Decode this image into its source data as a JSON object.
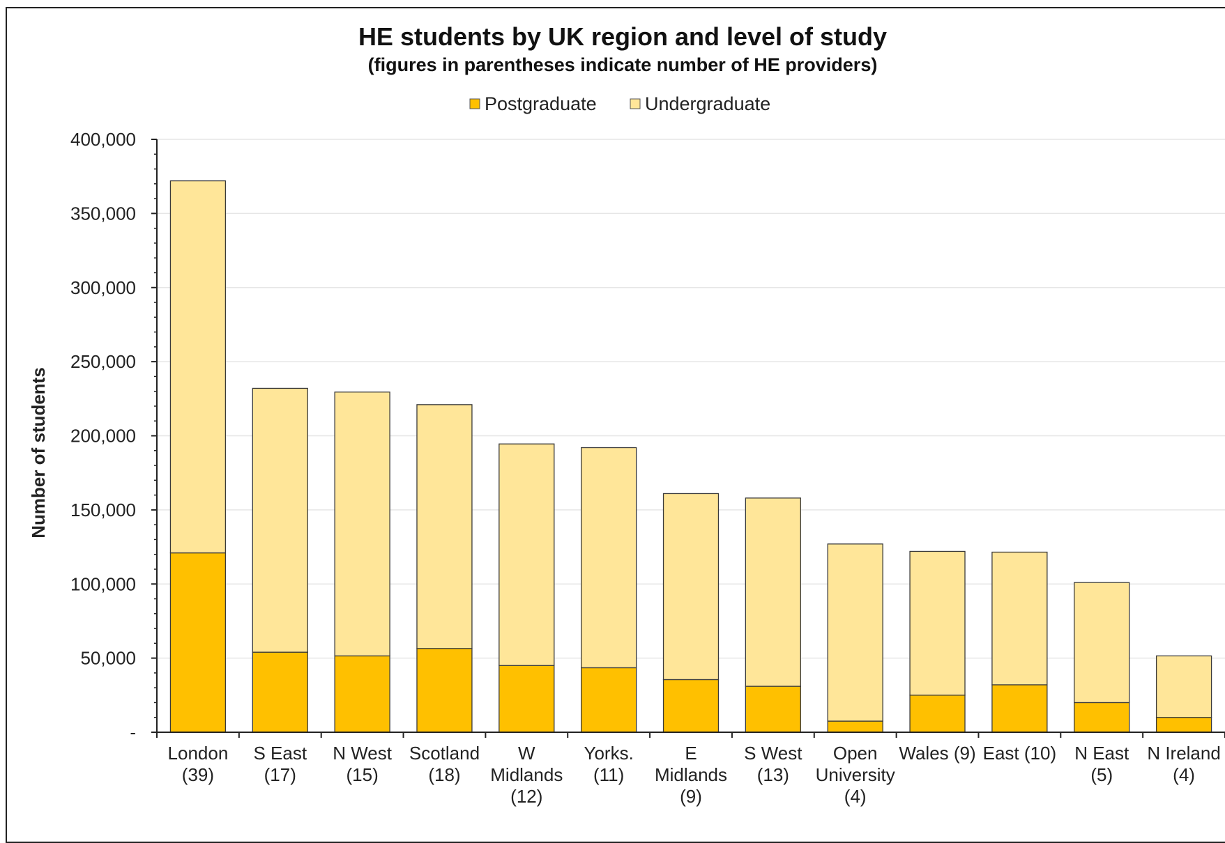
{
  "chart_data": {
    "type": "bar",
    "stacked": true,
    "title": "HE students by UK region and level of study",
    "subtitle": "(figures in parentheses indicate number of HE providers)",
    "xlabel": "",
    "ylabel": "Number of students",
    "ylim": [
      0,
      400000
    ],
    "yticks": [
      0,
      50000,
      100000,
      150000,
      200000,
      250000,
      300000,
      350000,
      400000
    ],
    "ytick_labels": [
      "-",
      "50,000",
      "100,000",
      "150,000",
      "200,000",
      "250,000",
      "300,000",
      "350,000",
      "400,000"
    ],
    "grid": true,
    "legend_position": "top-center",
    "categories": [
      [
        "London",
        "(39)"
      ],
      [
        "S East",
        "(17)"
      ],
      [
        "N West",
        "(15)"
      ],
      [
        "Scotland",
        "(18)"
      ],
      [
        "W",
        "Midlands",
        "(12)"
      ],
      [
        "Yorks.",
        "(11)"
      ],
      [
        "E",
        "Midlands",
        "(9)"
      ],
      [
        "S West",
        "(13)"
      ],
      [
        "Open",
        "University",
        "(4)"
      ],
      [
        "Wales (9)"
      ],
      [
        "East (10)"
      ],
      [
        "N East",
        "(5)"
      ],
      [
        "N Ireland",
        "(4)"
      ]
    ],
    "series": [
      {
        "name": "Postgraduate",
        "color": "#FFC000",
        "values": [
          121000,
          54000,
          51500,
          56500,
          45000,
          43500,
          35500,
          31000,
          7500,
          25000,
          32000,
          20000,
          10000
        ]
      },
      {
        "name": "Undergraduate",
        "color": "#FFE699",
        "values": [
          251000,
          178000,
          178000,
          164500,
          149500,
          148500,
          125500,
          127000,
          119500,
          97000,
          89500,
          81000,
          41500
        ]
      }
    ]
  }
}
